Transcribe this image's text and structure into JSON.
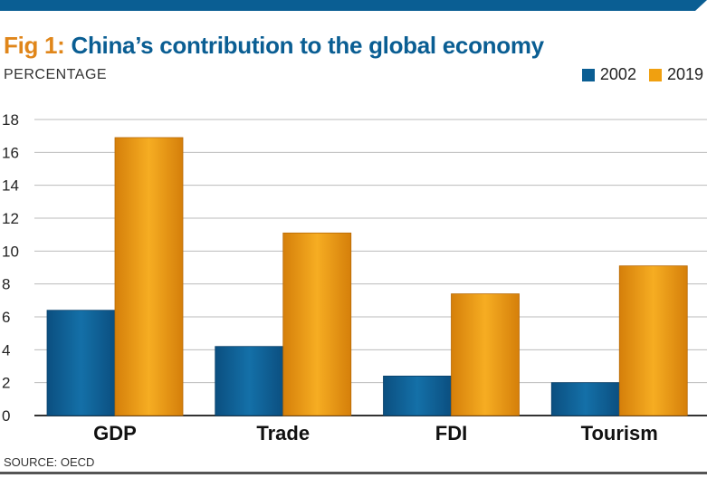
{
  "header": {
    "title_prefix": "Fig 1:",
    "title_main": "China’s contribution to the global economy",
    "unit_label": "PERCENTAGE"
  },
  "footer": {
    "source": "SOURCE: OECD"
  },
  "colors": {
    "band": "#0a5e93",
    "series_2002": "#0a5e93",
    "series_2019": "#f0a010",
    "grid": "#bbbbbb",
    "axis": "#333333"
  },
  "chart_data": {
    "type": "bar",
    "title": "China’s contribution to the global economy",
    "ylabel": "PERCENTAGE",
    "xlabel": "",
    "categories": [
      "GDP",
      "Trade",
      "FDI",
      "Tourism"
    ],
    "series": [
      {
        "name": "2002",
        "values": [
          6.4,
          4.2,
          2.4,
          2.0
        ]
      },
      {
        "name": "2019",
        "values": [
          16.9,
          11.1,
          7.4,
          9.1
        ]
      }
    ],
    "ylim": [
      0,
      18
    ],
    "yticks": [
      0,
      2,
      4,
      6,
      8,
      10,
      12,
      14,
      16,
      18
    ],
    "grid": true,
    "legend_position": "top-right"
  }
}
